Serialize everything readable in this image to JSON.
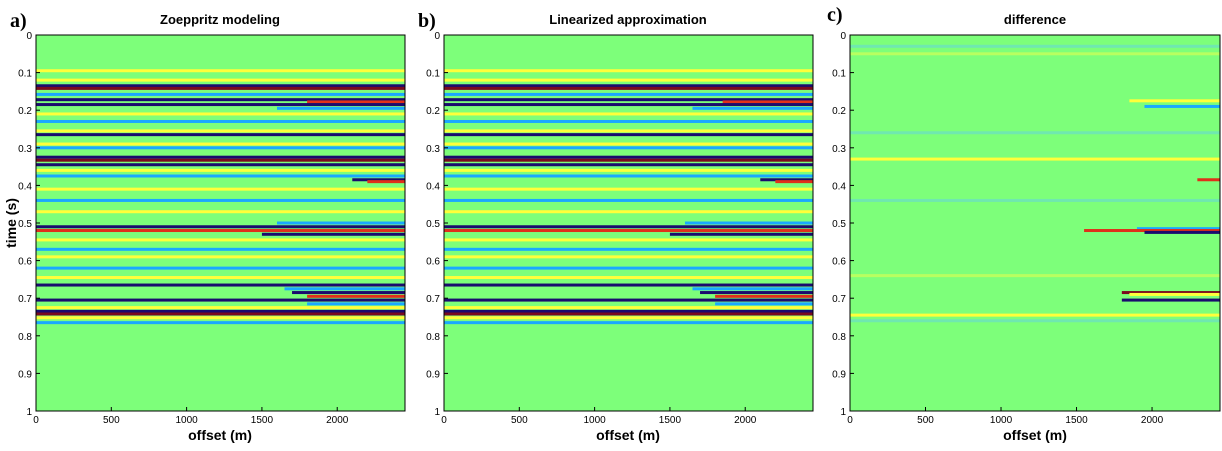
{
  "chart_data": [
    {
      "type": "heatmap",
      "panel_label": "a)",
      "title": "Zoeppritz modeling",
      "xlabel": "offset (m)",
      "ylabel": "time (s)",
      "xlim": [
        0,
        2450
      ],
      "ylim": [
        0,
        1
      ],
      "y_reversed": true,
      "x_ticks": [
        "0",
        "500",
        "1000",
        "1500",
        "2000"
      ],
      "y_ticks": [
        "0",
        "0.1",
        "0.2",
        "0.3",
        "0.4",
        "0.5",
        "0.6",
        "0.7",
        "0.8",
        "0.9",
        "1"
      ],
      "background": "#7dff7a",
      "reflectors": [
        {
          "t": 0.095,
          "type": "yellow",
          "x0": 0
        },
        {
          "t": 0.12,
          "type": "yellow",
          "x0": 0
        },
        {
          "t": 0.135,
          "type": "darkblue",
          "x0": 0
        },
        {
          "t": 0.142,
          "type": "darkred",
          "x0": 0
        },
        {
          "t": 0.158,
          "type": "cyan",
          "x0": 0
        },
        {
          "t": 0.172,
          "type": "darkblue",
          "x0": 0
        },
        {
          "t": 0.178,
          "type": "red",
          "x0": 1800
        },
        {
          "t": 0.185,
          "type": "darkblue",
          "x0": 0
        },
        {
          "t": 0.195,
          "type": "cyan",
          "x0": 1600
        },
        {
          "t": 0.21,
          "type": "yellow",
          "x0": 0
        },
        {
          "t": 0.23,
          "type": "cyan",
          "x0": 0
        },
        {
          "t": 0.255,
          "type": "yellow",
          "x0": 0
        },
        {
          "t": 0.265,
          "type": "darkblue",
          "x0": 0
        },
        {
          "t": 0.29,
          "type": "yellow",
          "x0": 0
        },
        {
          "t": 0.3,
          "type": "cyan",
          "x0": 0
        },
        {
          "t": 0.325,
          "type": "darkblue",
          "x0": 0
        },
        {
          "t": 0.333,
          "type": "darkred",
          "x0": 0
        },
        {
          "t": 0.345,
          "type": "darkblue",
          "x0": 0
        },
        {
          "t": 0.36,
          "type": "yellow",
          "x0": 0
        },
        {
          "t": 0.375,
          "type": "cyan",
          "x0": 0
        },
        {
          "t": 0.385,
          "type": "darkblue",
          "x0": 2100
        },
        {
          "t": 0.39,
          "type": "red",
          "x0": 2200
        },
        {
          "t": 0.41,
          "type": "yellow",
          "x0": 0
        },
        {
          "t": 0.44,
          "type": "cyan",
          "x0": 0
        },
        {
          "t": 0.47,
          "type": "yellow",
          "x0": 0
        },
        {
          "t": 0.5,
          "type": "cyan",
          "x0": 1600
        },
        {
          "t": 0.51,
          "type": "darkblue",
          "x0": 0
        },
        {
          "t": 0.52,
          "type": "red",
          "x0": 0
        },
        {
          "t": 0.53,
          "type": "darkblue",
          "x0": 1500
        },
        {
          "t": 0.545,
          "type": "yellow",
          "x0": 0
        },
        {
          "t": 0.57,
          "type": "cyan",
          "x0": 0
        },
        {
          "t": 0.59,
          "type": "yellow",
          "x0": 0
        },
        {
          "t": 0.62,
          "type": "cyan",
          "x0": 0
        },
        {
          "t": 0.645,
          "type": "yellow",
          "x0": 0
        },
        {
          "t": 0.665,
          "type": "darkblue",
          "x0": 0
        },
        {
          "t": 0.675,
          "type": "cyan",
          "x0": 1650
        },
        {
          "t": 0.685,
          "type": "darkblue",
          "x0": 1700
        },
        {
          "t": 0.695,
          "type": "red",
          "x0": 1800
        },
        {
          "t": 0.705,
          "type": "darkblue",
          "x0": 0
        },
        {
          "t": 0.715,
          "type": "cyan",
          "x0": 1800
        },
        {
          "t": 0.725,
          "type": "yellow",
          "x0": 0
        },
        {
          "t": 0.735,
          "type": "darkblue",
          "x0": 0
        },
        {
          "t": 0.742,
          "type": "darkred",
          "x0": 0
        },
        {
          "t": 0.752,
          "type": "yellow",
          "x0": 0
        },
        {
          "t": 0.765,
          "type": "cyan",
          "x0": 0
        }
      ]
    },
    {
      "type": "heatmap",
      "panel_label": "b)",
      "title": "Linearized approximation",
      "xlabel": "offset (m)",
      "ylabel": "",
      "xlim": [
        0,
        2450
      ],
      "ylim": [
        0,
        1
      ],
      "y_reversed": true,
      "x_ticks": [
        "0",
        "500",
        "1000",
        "1500",
        "2000"
      ],
      "y_ticks": [
        "0",
        "0.1",
        "0.2",
        "0.3",
        "0.4",
        "0.5",
        "0.6",
        "0.7",
        "0.8",
        "0.9",
        "1"
      ],
      "background": "#7dff7a",
      "reflectors": [
        {
          "t": 0.095,
          "type": "yellow",
          "x0": 0
        },
        {
          "t": 0.12,
          "type": "yellow",
          "x0": 0
        },
        {
          "t": 0.135,
          "type": "darkblue",
          "x0": 0
        },
        {
          "t": 0.142,
          "type": "darkred",
          "x0": 0
        },
        {
          "t": 0.158,
          "type": "cyan",
          "x0": 0
        },
        {
          "t": 0.172,
          "type": "darkblue",
          "x0": 0
        },
        {
          "t": 0.178,
          "type": "red",
          "x0": 1850
        },
        {
          "t": 0.185,
          "type": "darkblue",
          "x0": 0
        },
        {
          "t": 0.195,
          "type": "cyan",
          "x0": 1650
        },
        {
          "t": 0.21,
          "type": "yellow",
          "x0": 0
        },
        {
          "t": 0.23,
          "type": "cyan",
          "x0": 0
        },
        {
          "t": 0.255,
          "type": "yellow",
          "x0": 0
        },
        {
          "t": 0.265,
          "type": "darkblue",
          "x0": 0
        },
        {
          "t": 0.29,
          "type": "yellow",
          "x0": 0
        },
        {
          "t": 0.3,
          "type": "cyan",
          "x0": 0
        },
        {
          "t": 0.325,
          "type": "darkblue",
          "x0": 0
        },
        {
          "t": 0.333,
          "type": "darkred",
          "x0": 0
        },
        {
          "t": 0.345,
          "type": "darkblue",
          "x0": 0
        },
        {
          "t": 0.36,
          "type": "yellow",
          "x0": 0
        },
        {
          "t": 0.375,
          "type": "cyan",
          "x0": 0
        },
        {
          "t": 0.385,
          "type": "darkblue",
          "x0": 2100
        },
        {
          "t": 0.39,
          "type": "red",
          "x0": 2200
        },
        {
          "t": 0.41,
          "type": "yellow",
          "x0": 0
        },
        {
          "t": 0.44,
          "type": "cyan",
          "x0": 0
        },
        {
          "t": 0.47,
          "type": "yellow",
          "x0": 0
        },
        {
          "t": 0.5,
          "type": "cyan",
          "x0": 1600
        },
        {
          "t": 0.51,
          "type": "darkblue",
          "x0": 0
        },
        {
          "t": 0.52,
          "type": "red",
          "x0": 0
        },
        {
          "t": 0.53,
          "type": "darkblue",
          "x0": 1500
        },
        {
          "t": 0.545,
          "type": "yellow",
          "x0": 0
        },
        {
          "t": 0.57,
          "type": "cyan",
          "x0": 0
        },
        {
          "t": 0.59,
          "type": "yellow",
          "x0": 0
        },
        {
          "t": 0.62,
          "type": "cyan",
          "x0": 0
        },
        {
          "t": 0.645,
          "type": "yellow",
          "x0": 0
        },
        {
          "t": 0.665,
          "type": "darkblue",
          "x0": 0
        },
        {
          "t": 0.675,
          "type": "cyan",
          "x0": 1650
        },
        {
          "t": 0.685,
          "type": "darkblue",
          "x0": 1700
        },
        {
          "t": 0.695,
          "type": "red",
          "x0": 1800
        },
        {
          "t": 0.705,
          "type": "darkblue",
          "x0": 0
        },
        {
          "t": 0.715,
          "type": "cyan",
          "x0": 1800
        },
        {
          "t": 0.725,
          "type": "yellow",
          "x0": 0
        },
        {
          "t": 0.735,
          "type": "darkblue",
          "x0": 0
        },
        {
          "t": 0.742,
          "type": "darkred",
          "x0": 0
        },
        {
          "t": 0.752,
          "type": "yellow",
          "x0": 0
        },
        {
          "t": 0.765,
          "type": "cyan",
          "x0": 0
        }
      ]
    },
    {
      "type": "heatmap",
      "panel_label": "c)",
      "title": "difference",
      "xlabel": "offset (m)",
      "ylabel": "",
      "xlim": [
        0,
        2450
      ],
      "ylim": [
        0,
        1
      ],
      "y_reversed": true,
      "x_ticks": [
        "0",
        "500",
        "1000",
        "1500",
        "2000"
      ],
      "y_ticks": [
        "0",
        "0.1",
        "0.2",
        "0.3",
        "0.4",
        "0.5",
        "0.6",
        "0.7",
        "0.8",
        "0.9",
        "1"
      ],
      "background": "#7dff7a",
      "reflectors": [
        {
          "t": 0.03,
          "type": "faintcyan",
          "x0": 0
        },
        {
          "t": 0.05,
          "type": "faintyellow",
          "x0": 0
        },
        {
          "t": 0.175,
          "type": "yellow",
          "x0": 1850
        },
        {
          "t": 0.19,
          "type": "cyan",
          "x0": 1950
        },
        {
          "t": 0.26,
          "type": "faintcyan",
          "x0": 0
        },
        {
          "t": 0.33,
          "type": "yellow",
          "x0": 0
        },
        {
          "t": 0.385,
          "type": "red",
          "x0": 2300
        },
        {
          "t": 0.44,
          "type": "faintcyan",
          "x0": 0
        },
        {
          "t": 0.515,
          "type": "cyan",
          "x0": 1900
        },
        {
          "t": 0.52,
          "type": "red",
          "x0": 1550
        },
        {
          "t": 0.525,
          "type": "darkblue",
          "x0": 1950
        },
        {
          "t": 0.64,
          "type": "faintyellow",
          "x0": 0
        },
        {
          "t": 0.685,
          "type": "darkred",
          "x0": 1800
        },
        {
          "t": 0.69,
          "type": "yellow",
          "x0": 1850
        },
        {
          "t": 0.705,
          "type": "darkblue",
          "x0": 1800
        },
        {
          "t": 0.745,
          "type": "yellow",
          "x0": 0
        },
        {
          "t": 0.76,
          "type": "faintcyan",
          "x0": 0
        }
      ]
    }
  ],
  "colors": {
    "darkblue": "#1a0b6e",
    "darkred": "#7a0a1e",
    "red": "#e0301a",
    "yellow": "#ffff3a",
    "cyan": "#1aa8ff",
    "faintcyan": "#6fe8b0",
    "faintyellow": "#b8ff60"
  }
}
